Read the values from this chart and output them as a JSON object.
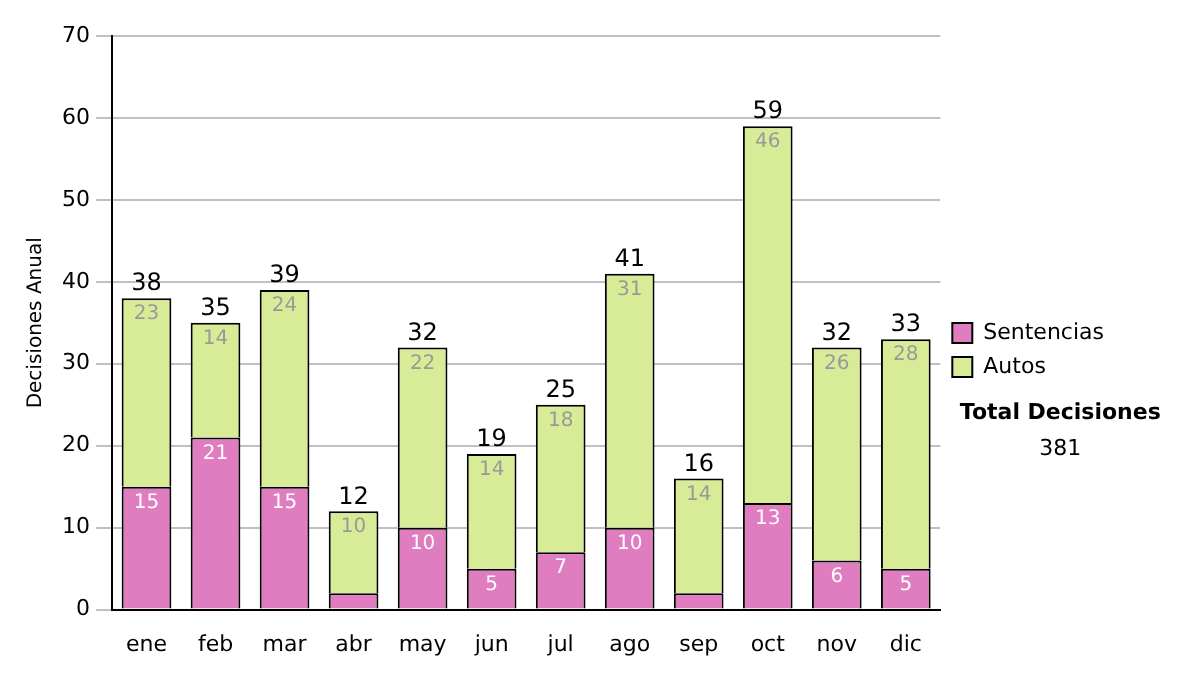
{
  "chart_data": {
    "type": "bar",
    "stacked": true,
    "ylabel": "Decisiones Anual",
    "categories": [
      "ene",
      "feb",
      "mar",
      "abr",
      "may",
      "jun",
      "jul",
      "ago",
      "sep",
      "oct",
      "nov",
      "dic"
    ],
    "series": [
      {
        "name": "Sentencias",
        "color": "#e07cc0",
        "values": [
          15,
          21,
          15,
          2,
          10,
          5,
          7,
          10,
          2,
          13,
          6,
          5
        ],
        "value_labels": [
          "15",
          "21",
          "15",
          null,
          "10",
          "5",
          "7",
          "10",
          null,
          "13",
          "6",
          "5"
        ]
      },
      {
        "name": "Autos",
        "color": "#d8ec98",
        "values": [
          23,
          14,
          24,
          10,
          22,
          14,
          18,
          31,
          14,
          46,
          26,
          28
        ],
        "value_labels": [
          "23",
          "14",
          "24",
          "10",
          "22",
          "14",
          "18",
          "31",
          "14",
          "46",
          "26",
          "28"
        ]
      }
    ],
    "totals": [
      "38",
      "35",
      "39",
      "12",
      "32",
      "19",
      "25",
      "41",
      "16",
      "59",
      "32",
      "33"
    ],
    "ylim": [
      0,
      70
    ],
    "yticks": [
      0,
      10,
      20,
      30,
      40,
      50,
      60,
      70
    ],
    "grid": "y",
    "legend": "right",
    "annotations": [
      "Total Decisiones",
      "381"
    ]
  }
}
